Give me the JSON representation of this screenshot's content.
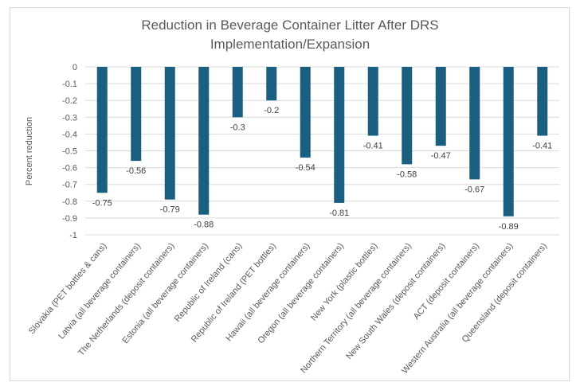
{
  "chart_data": {
    "type": "bar",
    "title": "Reduction in Beverage Container Litter After DRS Implementation/Expansion",
    "title_lines": [
      "Reduction in Beverage Container Litter After DRS",
      "Implementation/Expansion"
    ],
    "xlabel": "",
    "ylabel": "Percent reduction",
    "ylim": [
      -1,
      0
    ],
    "yticks": [
      "0",
      "-0.1",
      "-0.2",
      "-0.3",
      "-0.4",
      "-0.5",
      "-0.6",
      "-0.7",
      "-0.8",
      "-0.9",
      "-1"
    ],
    "ytick_values": [
      0,
      -0.1,
      -0.2,
      -0.3,
      -0.4,
      -0.5,
      -0.6,
      -0.7,
      -0.8,
      -0.9,
      -1
    ],
    "grid": true,
    "bar_color": "#1a5e80",
    "categories": [
      "Slovakia (PET bottles & cans)",
      "Latvia (all beverage containers)",
      "The Netherlands (deposit containers)",
      "Estonia (all beverage containers)",
      "Republic of Ireland (cans)",
      "Republic of Ireland (PET bottles)",
      "Hawaii (all beverage containers)",
      "Oregon (all beverage containers)",
      "New York (plastic bottles)",
      "Northern Territory (all beverage containers)",
      "New South Wales (deposit containers)",
      "ACT (deposit containers)",
      "Western Australia (all beverage containers)",
      "Queensland (deposit containers)"
    ],
    "values": [
      -0.75,
      -0.56,
      -0.79,
      -0.88,
      -0.3,
      -0.2,
      -0.54,
      -0.81,
      -0.41,
      -0.58,
      -0.47,
      -0.67,
      -0.89,
      -0.41
    ],
    "data_labels": [
      "-0.75",
      "-0.56",
      "-0.79",
      "-0.88",
      "-0.3",
      "-0.2",
      "-0.54",
      "-0.81",
      "-0.41",
      "-0.58",
      "-0.47",
      "-0.67",
      "-0.89",
      "-0.41"
    ]
  }
}
